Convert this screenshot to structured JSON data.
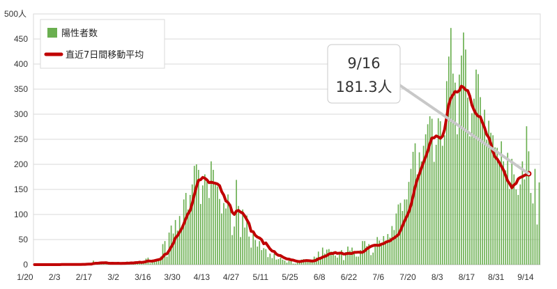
{
  "chart_data": {
    "type": "bar",
    "title": "",
    "y_unit_label": "人",
    "ylim": [
      0,
      500
    ],
    "y_ticks": [
      0,
      50,
      100,
      150,
      200,
      250,
      300,
      350,
      400,
      450,
      500
    ],
    "x_start_date": "1/20",
    "x_tick_labels": [
      "1/20",
      "2/3",
      "2/17",
      "3/2",
      "3/16",
      "3/30",
      "4/13",
      "4/27",
      "5/11",
      "5/25",
      "6/8",
      "6/22",
      "7/6",
      "7/20",
      "8/3",
      "8/17",
      "8/31",
      "9/14"
    ],
    "grid": true,
    "legend_position": "top-left",
    "series": [
      {
        "name": "陽性者数",
        "kind": "bar",
        "color": "#6aaf50",
        "values": [
          0,
          0,
          0,
          0,
          0,
          1,
          0,
          0,
          0,
          0,
          0,
          0,
          0,
          1,
          1,
          0,
          0,
          0,
          1,
          0,
          0,
          1,
          0,
          2,
          1,
          3,
          1,
          0,
          8,
          4,
          2,
          5,
          3,
          2,
          2,
          3,
          1,
          3,
          4,
          3,
          2,
          1,
          2,
          2,
          6,
          3,
          5,
          4,
          6,
          3,
          7,
          4,
          6,
          12,
          14,
          3,
          7,
          9,
          8,
          11,
          16,
          41,
          47,
          16,
          64,
          78,
          62,
          89,
          68,
          97,
          68,
          130,
          143,
          110,
          139,
          160,
          197,
          200,
          189,
          121,
          158,
          180,
          165,
          133,
          206,
          189,
          162,
          156,
          131,
          102,
          123,
          112,
          140,
          116,
          59,
          76,
          169,
          117,
          55,
          110,
          74,
          98,
          56,
          34,
          66,
          49,
          36,
          47,
          29,
          33,
          31,
          15,
          22,
          13,
          22,
          10,
          11,
          14,
          10,
          8,
          4,
          8,
          8,
          2,
          2,
          7,
          8,
          10,
          11,
          10,
          8,
          5,
          5,
          16,
          14,
          26,
          12,
          34,
          22,
          30,
          31,
          26,
          26,
          18,
          14,
          24,
          29,
          9,
          25,
          36,
          28,
          34,
          24,
          16,
          16,
          29,
          47,
          47,
          37,
          41,
          19,
          24,
          36,
          55,
          48,
          41,
          57,
          48,
          61,
          54,
          77,
          69,
          102,
          120,
          123,
          107,
          130,
          130,
          165,
          191,
          225,
          242,
          180,
          224,
          206,
          237,
          260,
          280,
          296,
          291,
          205,
          239,
          292,
          286,
          237,
          258,
          366,
          415,
          472,
          381,
          363,
          260,
          379,
          417,
          463,
          429,
          333,
          256,
          302,
          331,
          389,
          380,
          334,
          289,
          309,
          249,
          287,
          263,
          258,
          234,
          233,
          208,
          246,
          206,
          188,
          223,
          151,
          211,
          180,
          150,
          139,
          160,
          206,
          170,
          276,
          226,
          143,
          122,
          191,
          80,
          164
        ]
      },
      {
        "name": "直近7日間移動平均",
        "kind": "line",
        "color": "#c00000",
        "values": [
          0,
          0,
          0,
          0,
          0,
          0,
          0,
          0,
          0,
          0,
          0,
          0,
          0,
          0.3,
          0.4,
          0.4,
          0.4,
          0.4,
          0.4,
          0.3,
          0.3,
          0.3,
          0.3,
          0.5,
          0.6,
          0.9,
          1.1,
          1.0,
          2.1,
          2.7,
          2.7,
          3.3,
          3.6,
          3.6,
          3.9,
          3.0,
          2.6,
          2.7,
          2.6,
          2.6,
          2.7,
          2.4,
          2.6,
          2.6,
          2.9,
          3.0,
          3.4,
          3.3,
          4.0,
          4.1,
          4.9,
          4.4,
          5.0,
          6.0,
          7.4,
          7.0,
          7.1,
          7.9,
          9.0,
          10.0,
          11.1,
          15.4,
          20.6,
          21.7,
          27.9,
          35.3,
          42.3,
          53.3,
          57.7,
          64.9,
          71.7,
          81.4,
          92.1,
          101.6,
          107.8,
          122.0,
          139.3,
          155.3,
          168.3,
          169.4,
          173.9,
          172.3,
          169.0,
          163.4,
          164.6,
          163.3,
          162.3,
          160.9,
          157.6,
          145.6,
          138.6,
          127.0,
          124.0,
          118.0,
          104.6,
          100.1,
          106.9,
          108.1,
          104.7,
          102.8,
          96.7,
          89.3,
          81.9,
          66.4,
          65.6,
          58.4,
          55.0,
          53.2,
          49.7,
          41.6,
          43.3,
          37.3,
          31.3,
          27.2,
          26.2,
          21.1,
          18.6,
          18.0,
          15.3,
          13.2,
          11.4,
          11.0,
          9.6,
          9.0,
          7.6,
          6.7,
          6.1,
          6.7,
          7.4,
          8.1,
          8.0,
          7.7,
          7.1,
          7.6,
          8.9,
          11.6,
          12.7,
          15.0,
          16.3,
          18.1,
          21.0,
          22.4,
          22.3,
          24.1,
          22.4,
          23.0,
          23.1,
          21.1,
          21.4,
          22.6,
          22.3,
          22.3,
          24.5,
          24.5,
          24.9,
          24.5,
          24.7,
          27.3,
          31.4,
          34.1,
          36.4,
          38.0,
          38.9,
          38.5,
          38.5,
          40.9,
          41.9,
          44.5,
          46.3,
          47.3,
          50.7,
          53.1,
          56.4,
          59.6,
          67.9,
          77.7,
          87.5,
          95.9,
          105.3,
          118.4,
          136.0,
          154.9,
          169.6,
          180.6,
          192.6,
          204.1,
          214.7,
          226.4,
          241.3,
          252.6,
          252.9,
          256.7,
          254.9,
          252.0,
          256.0,
          269.4,
          294.3,
          319.3,
          332.1,
          338.6,
          345.3,
          344.0,
          347.1,
          355.9,
          353.6,
          348.6,
          347.1,
          336.1,
          318.1,
          308.3,
          300.6,
          295.9,
          294.9,
          283.3,
          273.3,
          259.6,
          253.6,
          241.3,
          225.0,
          214.7,
          210.7,
          203.7,
          196.3,
          188.7,
          177.9,
          166.9,
          161.0,
          153.3,
          159.0,
          162.0,
          171.0,
          173.9,
          175.7,
          178.0,
          180.0,
          181.3
        ]
      }
    ],
    "annotations": [
      {
        "text_line1": "9/16",
        "text_line2": "181.3人",
        "points_to": "last moving-average point"
      }
    ]
  },
  "legend": {
    "bar_label": "陽性者数",
    "line_label": "直近7日間移動平均"
  },
  "callout": {
    "line1": "9/16",
    "line2": "181.3人"
  },
  "y_axis": {
    "top_label": "500",
    "unit": "人"
  }
}
